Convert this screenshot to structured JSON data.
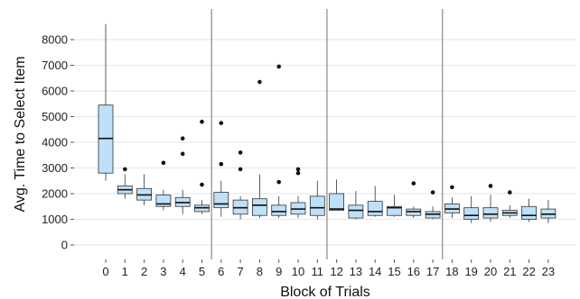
{
  "chart_data": {
    "type": "boxplot",
    "xlabel": "Block of Trials",
    "ylabel": "Avg. Time to Select Item",
    "ylim": [
      -400,
      8900
    ],
    "yticks": [
      0,
      1000,
      2000,
      3000,
      4000,
      5000,
      6000,
      7000,
      8000
    ],
    "categories": [
      "0",
      "1",
      "2",
      "3",
      "4",
      "5",
      "6",
      "7",
      "8",
      "9",
      "10",
      "11",
      "12",
      "13",
      "14",
      "15",
      "16",
      "17",
      "18",
      "19",
      "20",
      "21",
      "22",
      "23"
    ],
    "block_separators_after": [
      "5",
      "11",
      "17"
    ],
    "grid": true,
    "colors": {
      "panel_bg": "#ffffff",
      "grid": "#e6e6e6",
      "box_fill": "#bee0f8",
      "box_line": "#333333",
      "separator": "#888888",
      "outlier": "#111111"
    },
    "boxes": [
      {
        "category": "0",
        "whisker_low": 2500,
        "q1": 2800,
        "median": 4150,
        "q3": 5450,
        "whisker_high": 8600,
        "outliers": []
      },
      {
        "category": "1",
        "whisker_low": 1800,
        "q1": 2000,
        "median": 2150,
        "q3": 2300,
        "whisker_high": 2750,
        "outliers": [
          2950
        ]
      },
      {
        "category": "2",
        "whisker_low": 1550,
        "q1": 1750,
        "median": 1950,
        "q3": 2200,
        "whisker_high": 2750,
        "outliers": []
      },
      {
        "category": "3",
        "whisker_low": 1350,
        "q1": 1500,
        "median": 1600,
        "q3": 1950,
        "whisker_high": 2150,
        "outliers": [
          3200
        ]
      },
      {
        "category": "4",
        "whisker_low": 1200,
        "q1": 1500,
        "median": 1650,
        "q3": 1850,
        "whisker_high": 2150,
        "outliers": [
          3550,
          4150
        ]
      },
      {
        "category": "5",
        "whisker_low": 1200,
        "q1": 1300,
        "median": 1450,
        "q3": 1550,
        "whisker_high": 1750,
        "outliers": [
          2350,
          4800
        ]
      },
      {
        "category": "6",
        "whisker_low": 1100,
        "q1": 1450,
        "median": 1600,
        "q3": 2050,
        "whisker_high": 2500,
        "outliers": [
          3150,
          4750
        ]
      },
      {
        "category": "7",
        "whisker_low": 1000,
        "q1": 1200,
        "median": 1450,
        "q3": 1750,
        "whisker_high": 1900,
        "outliers": [
          2950,
          3600
        ]
      },
      {
        "category": "8",
        "whisker_low": 1050,
        "q1": 1150,
        "median": 1550,
        "q3": 1800,
        "whisker_high": 2750,
        "outliers": [
          6350
        ]
      },
      {
        "category": "9",
        "whisker_low": 1050,
        "q1": 1150,
        "median": 1300,
        "q3": 1550,
        "whisker_high": 1900,
        "outliers": [
          2450,
          6950
        ]
      },
      {
        "category": "10",
        "whisker_low": 1050,
        "q1": 1200,
        "median": 1400,
        "q3": 1650,
        "whisker_high": 1900,
        "outliers": [
          2800,
          2950
        ]
      },
      {
        "category": "11",
        "whisker_low": 1000,
        "q1": 1150,
        "median": 1450,
        "q3": 1900,
        "whisker_high": 2500,
        "outliers": []
      },
      {
        "category": "12",
        "whisker_low": 1350,
        "q1": 1350,
        "median": 1400,
        "q3": 2000,
        "whisker_high": 2550,
        "outliers": []
      },
      {
        "category": "13",
        "whisker_low": 1000,
        "q1": 1050,
        "median": 1350,
        "q3": 1550,
        "whisker_high": 2100,
        "outliers": []
      },
      {
        "category": "14",
        "whisker_low": 1100,
        "q1": 1150,
        "median": 1300,
        "q3": 1700,
        "whisker_high": 2300,
        "outliers": []
      },
      {
        "category": "15",
        "whisker_low": 1100,
        "q1": 1150,
        "median": 1450,
        "q3": 1500,
        "whisker_high": 1950,
        "outliers": []
      },
      {
        "category": "16",
        "whisker_low": 1050,
        "q1": 1150,
        "median": 1300,
        "q3": 1400,
        "whisker_high": 1500,
        "outliers": [
          2400
        ]
      },
      {
        "category": "17",
        "whisker_low": 1000,
        "q1": 1050,
        "median": 1200,
        "q3": 1300,
        "whisker_high": 1500,
        "outliers": [
          2050
        ]
      },
      {
        "category": "18",
        "whisker_low": 1050,
        "q1": 1250,
        "median": 1400,
        "q3": 1600,
        "whisker_high": 1850,
        "outliers": [
          2250
        ]
      },
      {
        "category": "19",
        "whisker_low": 850,
        "q1": 1000,
        "median": 1150,
        "q3": 1450,
        "whisker_high": 1900,
        "outliers": []
      },
      {
        "category": "20",
        "whisker_low": 900,
        "q1": 1050,
        "median": 1200,
        "q3": 1450,
        "whisker_high": 1950,
        "outliers": [
          2300
        ]
      },
      {
        "category": "21",
        "whisker_low": 1050,
        "q1": 1150,
        "median": 1250,
        "q3": 1350,
        "whisker_high": 1550,
        "outliers": [
          2050
        ]
      },
      {
        "category": "22",
        "whisker_low": 900,
        "q1": 1000,
        "median": 1150,
        "q3": 1500,
        "whisker_high": 1800,
        "outliers": []
      },
      {
        "category": "23",
        "whisker_low": 850,
        "q1": 1050,
        "median": 1200,
        "q3": 1400,
        "whisker_high": 1750,
        "outliers": []
      }
    ]
  }
}
